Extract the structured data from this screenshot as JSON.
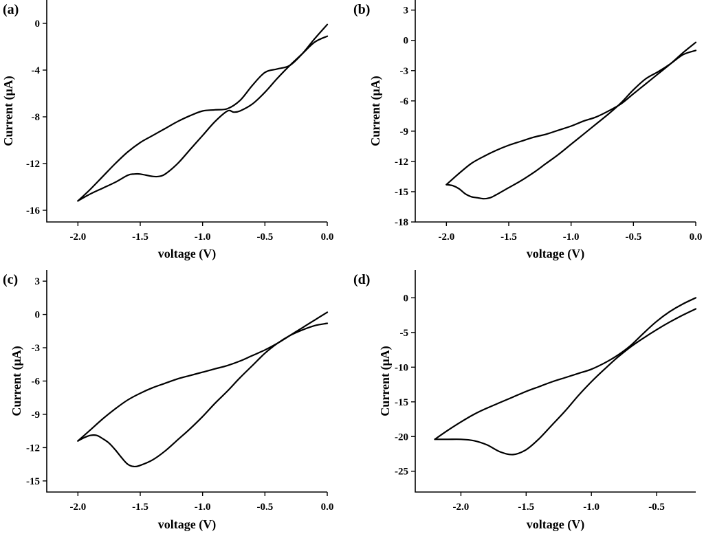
{
  "chart_data": [
    {
      "panel": "(a)",
      "type": "line",
      "xlabel": "voltage (V)",
      "ylabel": "Current (μA)",
      "xlim": [
        -2.25,
        0.0
      ],
      "ylim": [
        -17,
        2
      ],
      "xticks": [
        -2.0,
        -1.5,
        -1.0,
        -0.5,
        0.0
      ],
      "xtick_labels": [
        "-2.0",
        "-1.5",
        "-1.0",
        "-0.5",
        "0.0"
      ],
      "yticks": [
        0,
        -4,
        -8,
        -12,
        -16
      ],
      "ytick_labels": [
        "0",
        "-4",
        "-8",
        "-12",
        "-16"
      ],
      "series": [
        {
          "name": "upper",
          "x": [
            0.0,
            -0.1,
            -0.2,
            -0.3,
            -0.4,
            -0.5,
            -0.6,
            -0.7,
            -0.8,
            -0.9,
            -1.0,
            -1.1,
            -1.2,
            -1.3,
            -1.4,
            -1.5,
            -1.6,
            -1.7,
            -1.8,
            -1.9,
            -2.0
          ],
          "y": [
            -0.1,
            -1.3,
            -2.6,
            -3.6,
            -3.9,
            -4.2,
            -5.3,
            -6.6,
            -7.3,
            -7.4,
            -7.5,
            -7.9,
            -8.4,
            -9.0,
            -9.6,
            -10.2,
            -11.0,
            -12.0,
            -13.1,
            -14.2,
            -15.2
          ]
        },
        {
          "name": "lower",
          "x": [
            -2.0,
            -1.9,
            -1.8,
            -1.7,
            -1.6,
            -1.55,
            -1.5,
            -1.4,
            -1.35,
            -1.3,
            -1.2,
            -1.1,
            -1.0,
            -0.9,
            -0.8,
            -0.75,
            -0.7,
            -0.6,
            -0.5,
            -0.4,
            -0.3,
            -0.2,
            -0.1,
            0.0
          ],
          "y": [
            -15.2,
            -14.6,
            -14.1,
            -13.6,
            -13.0,
            -12.9,
            -12.9,
            -13.1,
            -13.1,
            -12.9,
            -12.0,
            -10.8,
            -9.6,
            -8.4,
            -7.5,
            -7.6,
            -7.5,
            -6.9,
            -5.9,
            -4.7,
            -3.6,
            -2.6,
            -1.6,
            -1.1
          ]
        }
      ]
    },
    {
      "panel": "(b)",
      "type": "line",
      "xlabel": "voltage (V)",
      "ylabel": "Current (μA)",
      "xlim": [
        -2.25,
        0.0
      ],
      "ylim": [
        -18,
        4
      ],
      "xticks": [
        -2.0,
        -1.5,
        -1.0,
        -0.5,
        0.0
      ],
      "xtick_labels": [
        "-2.0",
        "-1.5",
        "-1.0",
        "-0.5",
        "0.0"
      ],
      "yticks": [
        3,
        0,
        -3,
        -6,
        -9,
        -12,
        -15,
        -18
      ],
      "ytick_labels": [
        "3",
        "0",
        "-3",
        "-6",
        "-9",
        "-12",
        "-15",
        "-18"
      ],
      "series": [
        {
          "name": "upper",
          "x": [
            0.0,
            -0.1,
            -0.2,
            -0.3,
            -0.4,
            -0.5,
            -0.6,
            -0.7,
            -0.8,
            -0.9,
            -1.0,
            -1.1,
            -1.2,
            -1.3,
            -1.4,
            -1.5,
            -1.6,
            -1.7,
            -1.8,
            -1.9,
            -2.0
          ],
          "y": [
            -0.2,
            -1.2,
            -2.3,
            -3.3,
            -4.3,
            -5.3,
            -6.3,
            -7.0,
            -7.6,
            -8.0,
            -8.5,
            -8.9,
            -9.3,
            -9.6,
            -10.0,
            -10.4,
            -10.9,
            -11.5,
            -12.2,
            -13.2,
            -14.3
          ]
        },
        {
          "name": "lower",
          "x": [
            -2.0,
            -1.95,
            -1.9,
            -1.85,
            -1.8,
            -1.75,
            -1.7,
            -1.65,
            -1.6,
            -1.5,
            -1.4,
            -1.3,
            -1.2,
            -1.1,
            -1.0,
            -0.9,
            -0.8,
            -0.7,
            -0.6,
            -0.5,
            -0.4,
            -0.3,
            -0.2,
            -0.1,
            0.0
          ],
          "y": [
            -14.3,
            -14.4,
            -14.7,
            -15.2,
            -15.5,
            -15.6,
            -15.7,
            -15.6,
            -15.3,
            -14.6,
            -13.9,
            -13.1,
            -12.2,
            -11.3,
            -10.3,
            -9.3,
            -8.3,
            -7.3,
            -6.2,
            -4.9,
            -3.8,
            -3.1,
            -2.3,
            -1.4,
            -1.0
          ]
        }
      ]
    },
    {
      "panel": "(c)",
      "type": "line",
      "xlabel": "voltage (V)",
      "ylabel": "Current (μA)",
      "xlim": [
        -2.25,
        0.0
      ],
      "ylim": [
        -16,
        4
      ],
      "xticks": [
        -2.0,
        -1.5,
        -1.0,
        -0.5,
        0.0
      ],
      "xtick_labels": [
        "-2.0",
        "-1.5",
        "-1.0",
        "-0.5",
        "0.0"
      ],
      "yticks": [
        3,
        0,
        -3,
        -6,
        -9,
        -12,
        -15
      ],
      "ytick_labels": [
        "3",
        "0",
        "-3",
        "-6",
        "-9",
        "-12",
        "-15"
      ],
      "series": [
        {
          "name": "upper",
          "x": [
            0.0,
            -0.1,
            -0.2,
            -0.3,
            -0.4,
            -0.5,
            -0.6,
            -0.7,
            -0.8,
            -0.9,
            -1.0,
            -1.1,
            -1.2,
            -1.3,
            -1.4,
            -1.5,
            -1.6,
            -1.7,
            -1.8,
            -1.9,
            -2.0
          ],
          "y": [
            0.2,
            -0.5,
            -1.2,
            -1.9,
            -2.6,
            -3.2,
            -3.7,
            -4.2,
            -4.6,
            -4.9,
            -5.2,
            -5.5,
            -5.8,
            -6.2,
            -6.6,
            -7.1,
            -7.7,
            -8.5,
            -9.4,
            -10.4,
            -11.4
          ]
        },
        {
          "name": "lower",
          "x": [
            -2.0,
            -1.95,
            -1.9,
            -1.85,
            -1.8,
            -1.75,
            -1.7,
            -1.65,
            -1.6,
            -1.55,
            -1.5,
            -1.4,
            -1.3,
            -1.2,
            -1.1,
            -1.0,
            -0.9,
            -0.8,
            -0.7,
            -0.6,
            -0.5,
            -0.4,
            -0.3,
            -0.2,
            -0.1,
            0.0
          ],
          "y": [
            -11.4,
            -11.1,
            -10.9,
            -10.9,
            -11.2,
            -11.6,
            -12.2,
            -12.9,
            -13.5,
            -13.7,
            -13.6,
            -13.1,
            -12.3,
            -11.3,
            -10.3,
            -9.2,
            -8.0,
            -6.9,
            -5.7,
            -4.6,
            -3.5,
            -2.6,
            -1.9,
            -1.4,
            -1.0,
            -0.8
          ]
        }
      ]
    },
    {
      "panel": "(d)",
      "type": "line",
      "xlabel": "voltage (V)",
      "ylabel": "Current (μA)",
      "xlim": [
        -2.35,
        -0.2
      ],
      "ylim": [
        -28,
        4
      ],
      "xticks": [
        -2.0,
        -1.5,
        -1.0,
        -0.5
      ],
      "xtick_labels": [
        "-2.0",
        "-1.5",
        "-1.0",
        "-0.5"
      ],
      "yticks": [
        0,
        -5,
        -10,
        -15,
        -20,
        -25
      ],
      "ytick_labels": [
        "0",
        "-5",
        "-10",
        "-15",
        "-20",
        "-25"
      ],
      "series": [
        {
          "name": "upper",
          "x": [
            -0.2,
            -0.3,
            -0.4,
            -0.5,
            -0.6,
            -0.7,
            -0.8,
            -0.9,
            -1.0,
            -1.1,
            -1.2,
            -1.3,
            -1.4,
            -1.5,
            -1.6,
            -1.7,
            -1.8,
            -1.9,
            -2.0,
            -2.1,
            -2.2
          ],
          "y": [
            0.0,
            -0.9,
            -2.0,
            -3.4,
            -5.1,
            -6.9,
            -8.3,
            -9.4,
            -10.3,
            -10.9,
            -11.5,
            -12.1,
            -12.8,
            -13.5,
            -14.3,
            -15.1,
            -15.9,
            -16.8,
            -17.9,
            -19.1,
            -20.4
          ]
        },
        {
          "name": "lower",
          "x": [
            -2.2,
            -2.1,
            -2.0,
            -1.9,
            -1.8,
            -1.7,
            -1.6,
            -1.5,
            -1.4,
            -1.3,
            -1.2,
            -1.1,
            -1.0,
            -0.9,
            -0.8,
            -0.7,
            -0.6,
            -0.5,
            -0.4,
            -0.3,
            -0.2
          ],
          "y": [
            -20.4,
            -20.4,
            -20.4,
            -20.6,
            -21.2,
            -22.2,
            -22.6,
            -21.9,
            -20.3,
            -18.3,
            -16.3,
            -14.1,
            -12.1,
            -10.3,
            -8.6,
            -7.1,
            -5.8,
            -4.6,
            -3.5,
            -2.5,
            -1.6
          ]
        }
      ]
    }
  ]
}
